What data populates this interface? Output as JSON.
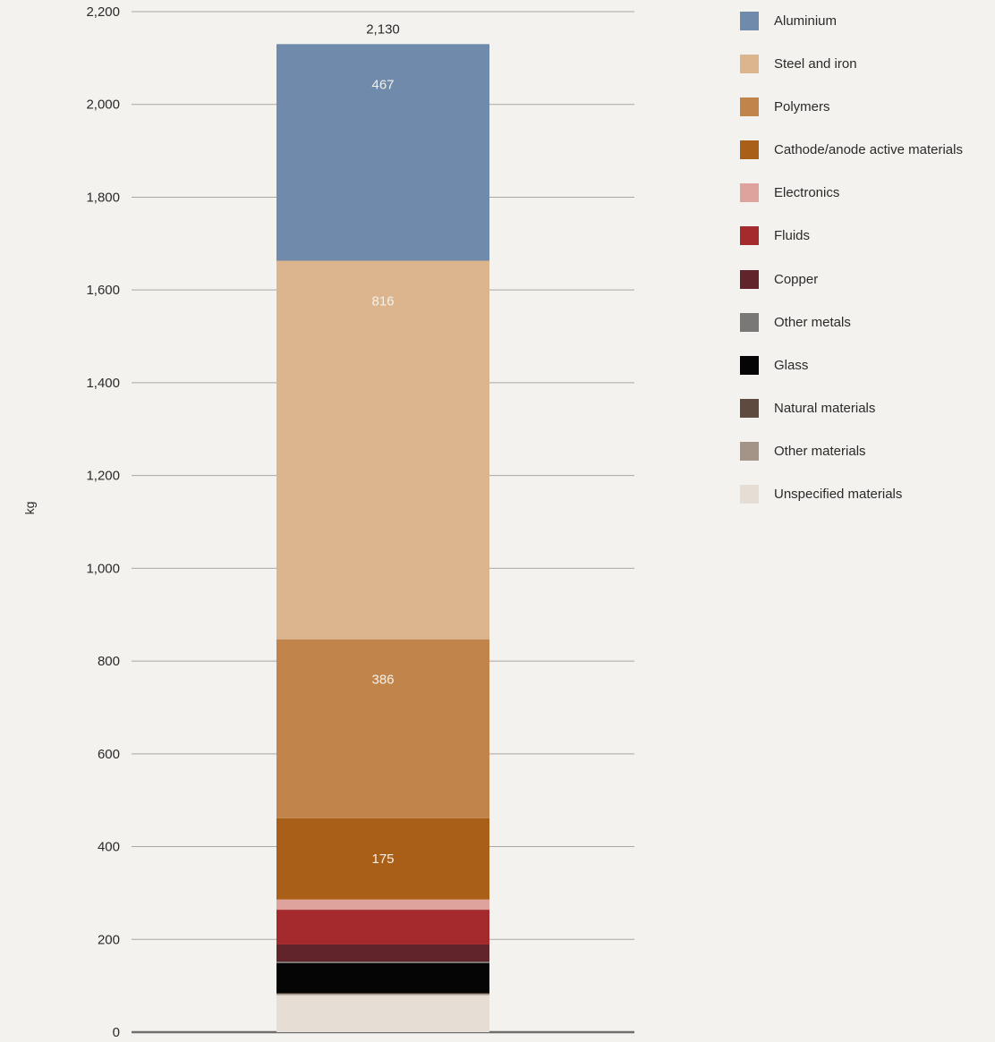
{
  "chart_data": {
    "type": "bar",
    "stacked": true,
    "title": "",
    "xlabel": "",
    "ylabel": "kg",
    "ylim": [
      0,
      2200
    ],
    "yticks": [
      0,
      200,
      400,
      600,
      800,
      1000,
      1200,
      1400,
      1600,
      1800,
      2000,
      2200
    ],
    "ytick_labels": [
      "0",
      "200",
      "400",
      "600",
      "800",
      "1,000",
      "1,200",
      "1,400",
      "1,600",
      "1,800",
      "2,000",
      "2,200"
    ],
    "grid": true,
    "legend_position": "right",
    "total": 2130,
    "total_label": "2,130",
    "series": [
      {
        "name": "Unspecified materials",
        "value": 80,
        "color": "#e6ddd4",
        "label": ""
      },
      {
        "name": "Other materials",
        "value": 3,
        "color": "#a39487",
        "label": ""
      },
      {
        "name": "Natural materials",
        "value": 1,
        "color": "#5e4a3f",
        "label": ""
      },
      {
        "name": "Glass",
        "value": 65,
        "color": "#050505",
        "label": ""
      },
      {
        "name": "Other metals",
        "value": 3,
        "color": "#7a7876",
        "label": ""
      },
      {
        "name": "Copper",
        "value": 37,
        "color": "#62242b",
        "label": ""
      },
      {
        "name": "Fluids",
        "value": 75,
        "color": "#a42a2e",
        "label": ""
      },
      {
        "name": "Electronics",
        "value": 22,
        "color": "#dfa39d",
        "label": ""
      },
      {
        "name": "Cathode/anode active materials",
        "value": 175,
        "color": "#aa5f18",
        "label": "175"
      },
      {
        "name": "Polymers",
        "value": 386,
        "color": "#c1844a",
        "label": "386"
      },
      {
        "name": "Steel and iron",
        "value": 816,
        "color": "#dcb58f",
        "label": "816"
      },
      {
        "name": "Aluminium",
        "value": 467,
        "color": "#6f8aaa",
        "label": "467"
      }
    ],
    "legend_order": [
      "Aluminium",
      "Steel and iron",
      "Polymers",
      "Cathode/anode active materials",
      "Electronics",
      "Fluids",
      "Copper",
      "Other metals",
      "Glass",
      "Natural materials",
      "Other materials",
      "Unspecified materials"
    ]
  }
}
